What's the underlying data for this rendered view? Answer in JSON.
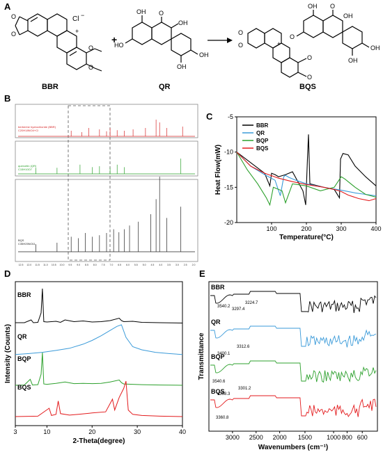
{
  "panels": {
    "A": {
      "letter": "A",
      "molecules": [
        "BBR",
        "QR",
        "BQS"
      ],
      "plus": "+",
      "labels": {
        "chloride": "Cl",
        "chloride_charge": "−",
        "oh": "OH",
        "ho": "HO",
        "o": "O",
        "plus_charge": "+"
      }
    },
    "B": {
      "letter": "B",
      "spectra": [
        {
          "name": "berberine hydrochloride (BBR)",
          "formula": "C20H18NO4+Cl",
          "color": "#d62728"
        },
        {
          "name": "quercetin (QR)",
          "formula": "C15H10O7",
          "color": "#2ca02c"
        },
        {
          "name": "BQS",
          "formula": "C35H25NO11",
          "color": "#222222"
        }
      ],
      "axis_ticks": [
        "12.5",
        "12.0",
        "11.5",
        "11.0",
        "10.5",
        "10.0",
        "9.5",
        "9.0",
        "8.5",
        "8.0",
        "7.5",
        "7.0",
        "6.5",
        "6.0",
        "5.5",
        "5.0",
        "4.5",
        "4.0",
        "3.5",
        "3.0",
        "2.5",
        "2.0"
      ]
    },
    "C": {
      "letter": "C"
    },
    "D": {
      "letter": "D"
    },
    "E": {
      "letter": "E"
    }
  },
  "chart_data": [
    {
      "type": "line",
      "panel": "C",
      "title": "",
      "xlabel": "Temperature(°C)",
      "ylabel": "Heat Flow(mW)",
      "xlim": [
        0,
        400
      ],
      "ylim": [
        -20,
        -5
      ],
      "xticks": [
        100,
        200,
        300,
        400
      ],
      "yticks": [
        -20,
        -15,
        -10,
        -5
      ],
      "legend": "top-right",
      "series": [
        {
          "name": "BBR",
          "color": "#000000",
          "x": [
            0,
            40,
            80,
            95,
            100,
            110,
            120,
            140,
            160,
            190,
            198,
            203,
            206,
            210,
            250,
            280,
            295,
            298,
            305,
            320,
            340,
            370,
            400
          ],
          "y": [
            -10,
            -11.5,
            -13,
            -14.8,
            -13,
            -13.2,
            -13.5,
            -13.2,
            -12.8,
            -15.5,
            -17.5,
            -11,
            -7.5,
            -14.5,
            -15,
            -15.3,
            -16.5,
            -11,
            -10.2,
            -10.4,
            -12,
            -13.5,
            -14.8
          ]
        },
        {
          "name": "QR",
          "color": "#3a9ad9",
          "x": [
            0,
            40,
            80,
            110,
            125,
            135,
            140,
            150,
            170,
            200,
            250,
            300,
            340,
            370,
            400
          ],
          "y": [
            -10,
            -12,
            -13.2,
            -14,
            -16.2,
            -13.5,
            -13.3,
            -13.6,
            -14,
            -14.5,
            -15,
            -15.4,
            -15.8,
            -16,
            -16.2
          ]
        },
        {
          "name": "BQP",
          "color": "#2ca02c",
          "x": [
            0,
            30,
            60,
            85,
            95,
            105,
            130,
            140,
            160,
            200,
            240,
            280,
            300,
            310,
            340,
            370,
            400
          ],
          "y": [
            -10,
            -12.5,
            -14.5,
            -16.5,
            -17.5,
            -15,
            -15.5,
            -17.2,
            -14.5,
            -14.8,
            -15.5,
            -15,
            -13.5,
            -13.8,
            -15,
            -16,
            -16.4
          ]
        },
        {
          "name": "BQS",
          "color": "#e31a1c",
          "x": [
            0,
            40,
            80,
            120,
            160,
            200,
            250,
            280,
            300,
            320,
            350,
            380,
            400
          ],
          "y": [
            -10,
            -12,
            -13,
            -13.7,
            -14.2,
            -14.6,
            -15,
            -15.3,
            -15.6,
            -16.1,
            -16.6,
            -16.9,
            -16.6
          ]
        }
      ]
    },
    {
      "type": "line",
      "panel": "D",
      "title": "",
      "xlabel": "2-Theta(degree)",
      "ylabel": "Intensity (Counts)",
      "xlim": [
        3,
        40
      ],
      "xticks": [
        3,
        10,
        20,
        30,
        40
      ],
      "series": [
        {
          "name": "BBR",
          "color": "#000000",
          "x": [
            3,
            5,
            6.5,
            7,
            8,
            8.7,
            9,
            9.3,
            10,
            12,
            13,
            14,
            16,
            18,
            20,
            22,
            24,
            26,
            26.5,
            27,
            29,
            31,
            35,
            40
          ],
          "y": [
            0.02,
            0.02,
            0.1,
            0.02,
            0.03,
            0.3,
            1.0,
            0.05,
            0.04,
            0.06,
            0.03,
            0.1,
            0.05,
            0.07,
            0.04,
            0.05,
            0.08,
            0.15,
            0.08,
            0.05,
            0.06,
            0.03,
            0.02,
            0.01
          ]
        },
        {
          "name": "QR",
          "color": "#3a9ad9",
          "x": [
            3,
            6,
            9,
            12,
            15,
            18,
            20,
            22,
            24,
            25.5,
            26.5,
            27.5,
            29,
            31,
            34,
            37,
            40
          ],
          "y": [
            0.05,
            0.08,
            0.12,
            0.18,
            0.25,
            0.38,
            0.5,
            0.65,
            0.82,
            0.95,
            1.0,
            0.6,
            0.3,
            0.2,
            0.12,
            0.08,
            0.05
          ]
        },
        {
          "name": "BQP",
          "color": "#2ca02c",
          "x": [
            3,
            5,
            6.3,
            6.8,
            8,
            8.7,
            9,
            9.3,
            10,
            12,
            14,
            16,
            18,
            20,
            22,
            24,
            26,
            26.5,
            27,
            29,
            31,
            35,
            40
          ],
          "y": [
            0.02,
            0.03,
            0.2,
            0.03,
            0.04,
            0.35,
            1.0,
            0.06,
            0.05,
            0.08,
            0.12,
            0.07,
            0.08,
            0.07,
            0.08,
            0.12,
            0.18,
            0.1,
            0.06,
            0.05,
            0.04,
            0.03,
            0.02
          ]
        },
        {
          "name": "BQS",
          "color": "#e31a1c",
          "x": [
            3,
            8,
            10.5,
            11,
            12,
            12.5,
            13,
            15,
            17,
            20,
            23,
            24.5,
            25,
            26,
            27,
            27.5,
            28,
            29,
            31,
            35,
            40
          ],
          "y": [
            0.02,
            0.03,
            0.25,
            0.05,
            0.08,
            0.45,
            0.1,
            0.06,
            0.08,
            0.12,
            0.15,
            0.5,
            0.2,
            0.55,
            0.8,
            1.0,
            0.2,
            0.08,
            0.05,
            0.03,
            0.02
          ]
        }
      ]
    },
    {
      "type": "line",
      "panel": "E",
      "title": "",
      "xlabel": "Wavenumbers (cm⁻¹)",
      "ylabel": "Transmittance",
      "xlim": [
        3900,
        400
      ],
      "xticks": [
        3000,
        2500,
        2000,
        1500,
        1000,
        800,
        600
      ],
      "series": [
        {
          "name": "BBR",
          "color": "#000000"
        },
        {
          "name": "QR",
          "color": "#3a9ad9"
        },
        {
          "name": "BQP",
          "color": "#2ca02c"
        },
        {
          "name": "BQS",
          "color": "#e31a1c"
        }
      ],
      "annotations": [
        {
          "series": "BBR",
          "text": "3224.7"
        },
        {
          "series": "BBR",
          "text": "3540.2"
        },
        {
          "series": "BBR",
          "text": "3297.4"
        },
        {
          "series": "QR",
          "text": "3312.6"
        },
        {
          "series": "QR",
          "text": "3400.1"
        },
        {
          "series": "BQP",
          "text": "3540.6"
        },
        {
          "series": "BQP",
          "text": "3301.2"
        },
        {
          "series": "BQS",
          "text": "3398.3"
        },
        {
          "series": "BQS",
          "text": "3360.8"
        }
      ]
    }
  ]
}
